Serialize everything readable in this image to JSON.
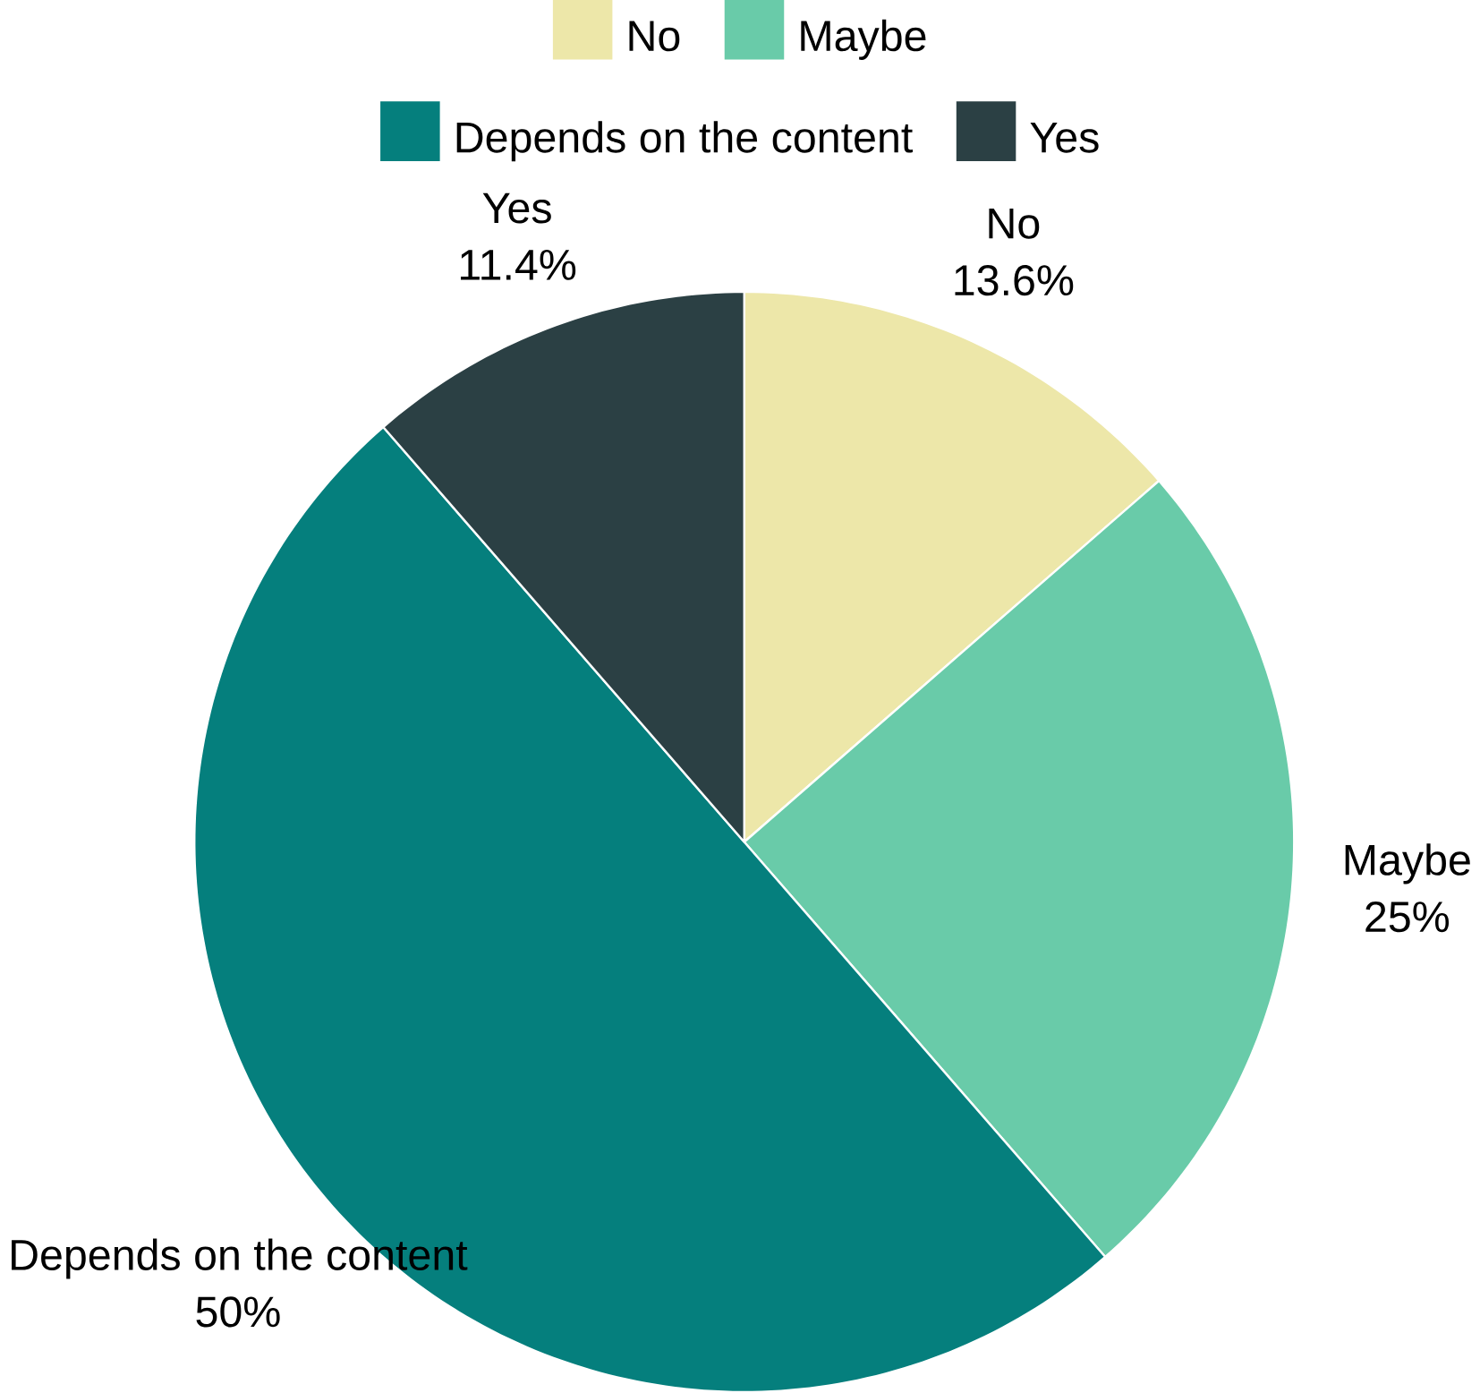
{
  "chart_data": {
    "type": "pie",
    "categories": [
      "No",
      "Maybe",
      "Depends on the content",
      "Yes"
    ],
    "values": [
      13.6,
      25,
      50,
      11.4
    ],
    "value_labels": [
      "13.6%",
      "25%",
      "50%",
      "11.4%"
    ],
    "colors": [
      "#ede7a9",
      "#69cba9",
      "#057f7d",
      "#2b4044"
    ],
    "legend": "top"
  }
}
